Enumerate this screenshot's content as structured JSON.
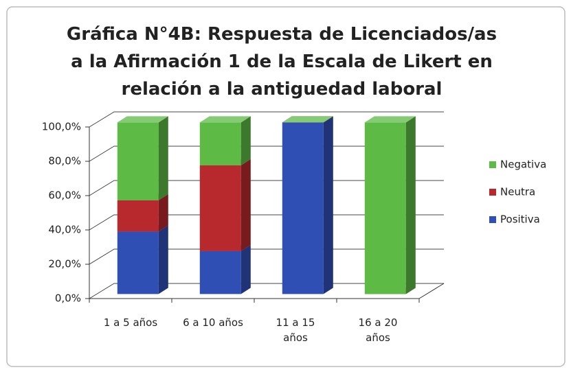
{
  "chart_data": {
    "type": "bar3d_stacked",
    "title": "Gráfica N°4B: Respuesta de Licenciados/as\na la Afirmación 1 de la Escala de Likert en\nrelación a la antiguedad laboral",
    "categories": [
      "1 a 5 años",
      "6 a 10 años",
      "11 a 15\naños",
      "16 a 20\naños"
    ],
    "series": [
      {
        "name": "Positiva",
        "color": "#2f4fb5",
        "values": [
          36.4,
          25,
          100,
          0
        ]
      },
      {
        "name": "Neutra",
        "color": "#b8292e",
        "values": [
          18.2,
          50,
          0,
          0
        ]
      },
      {
        "name": "Negativa",
        "color": "#5cba45",
        "values": [
          45.4,
          25,
          0,
          100
        ]
      }
    ],
    "ylim": [
      0,
      100
    ],
    "yticks": [
      {
        "value": 0,
        "label": "0,0%"
      },
      {
        "value": 20,
        "label": "20,0%"
      },
      {
        "value": 40,
        "label": "40,0%"
      },
      {
        "value": 60,
        "label": "60,0%"
      },
      {
        "value": 80,
        "label": "80,0%"
      },
      {
        "value": 100,
        "label": "100,0%"
      }
    ],
    "grid": true,
    "legend": "right"
  }
}
